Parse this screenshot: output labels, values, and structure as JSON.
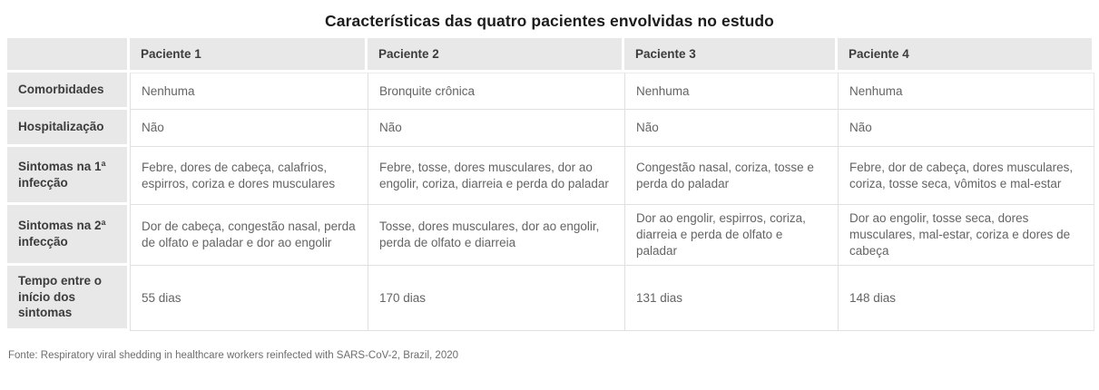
{
  "chart_data": {
    "type": "table",
    "title": "Características das quatro pacientes envolvidas no estudo",
    "columns": [
      "Paciente 1",
      "Paciente 2",
      "Paciente 3",
      "Paciente 4"
    ],
    "rows": [
      {
        "label": "Comorbidades",
        "cells": [
          "Nenhuma",
          "Bronquite crônica",
          "Nenhuma",
          "Nenhuma"
        ]
      },
      {
        "label": "Hospitalização",
        "cells": [
          "Não",
          "Não",
          "Não",
          "Não"
        ]
      },
      {
        "label": "Sintomas na 1ª infecção",
        "cells": [
          "Febre, dores de cabeça, calafrios, espirros, coriza e dores musculares",
          "Febre, tosse, dores musculares, dor ao engolir, coriza, diarreia e perda do paladar",
          "Congestão nasal, coriza, tosse e perda do paladar",
          "Febre, dor de cabeça, dores musculares, coriza, tosse seca, vômitos e mal-estar"
        ]
      },
      {
        "label": "Sintomas na 2ª infecção",
        "cells": [
          "Dor de cabeça, congestão nasal, perda de olfato e paladar e dor ao engolir",
          "Tosse, dores musculares, dor ao engolir, perda de olfato e diarreia",
          "Dor ao engolir, espirros, coriza, diarreia e perda de olfato e paladar",
          "Dor ao engolir, tosse seca, dores musculares, mal-estar, coriza e dores de cabeça"
        ]
      },
      {
        "label": "Tempo entre o início dos sintomas",
        "cells": [
          "55 dias",
          "170 dias",
          "131 dias",
          "148 dias"
        ]
      }
    ],
    "layout": {
      "header_position": "top",
      "row_labels_position": "left",
      "grid": "on"
    }
  },
  "footer": {
    "source": "Fonte: Respiratory viral shedding in healthcare workers reinfected with SARS-CoV-2, Brazil, 2020"
  },
  "colors": {
    "header_bg": "#e8e8e8",
    "cell_bg": "#ffffff",
    "grid_line": "#e0e0e0",
    "title_text": "#1c1c1c",
    "label_text": "#3c3c3c",
    "cell_text": "#646464",
    "footer_text": "#6e6e6e"
  }
}
